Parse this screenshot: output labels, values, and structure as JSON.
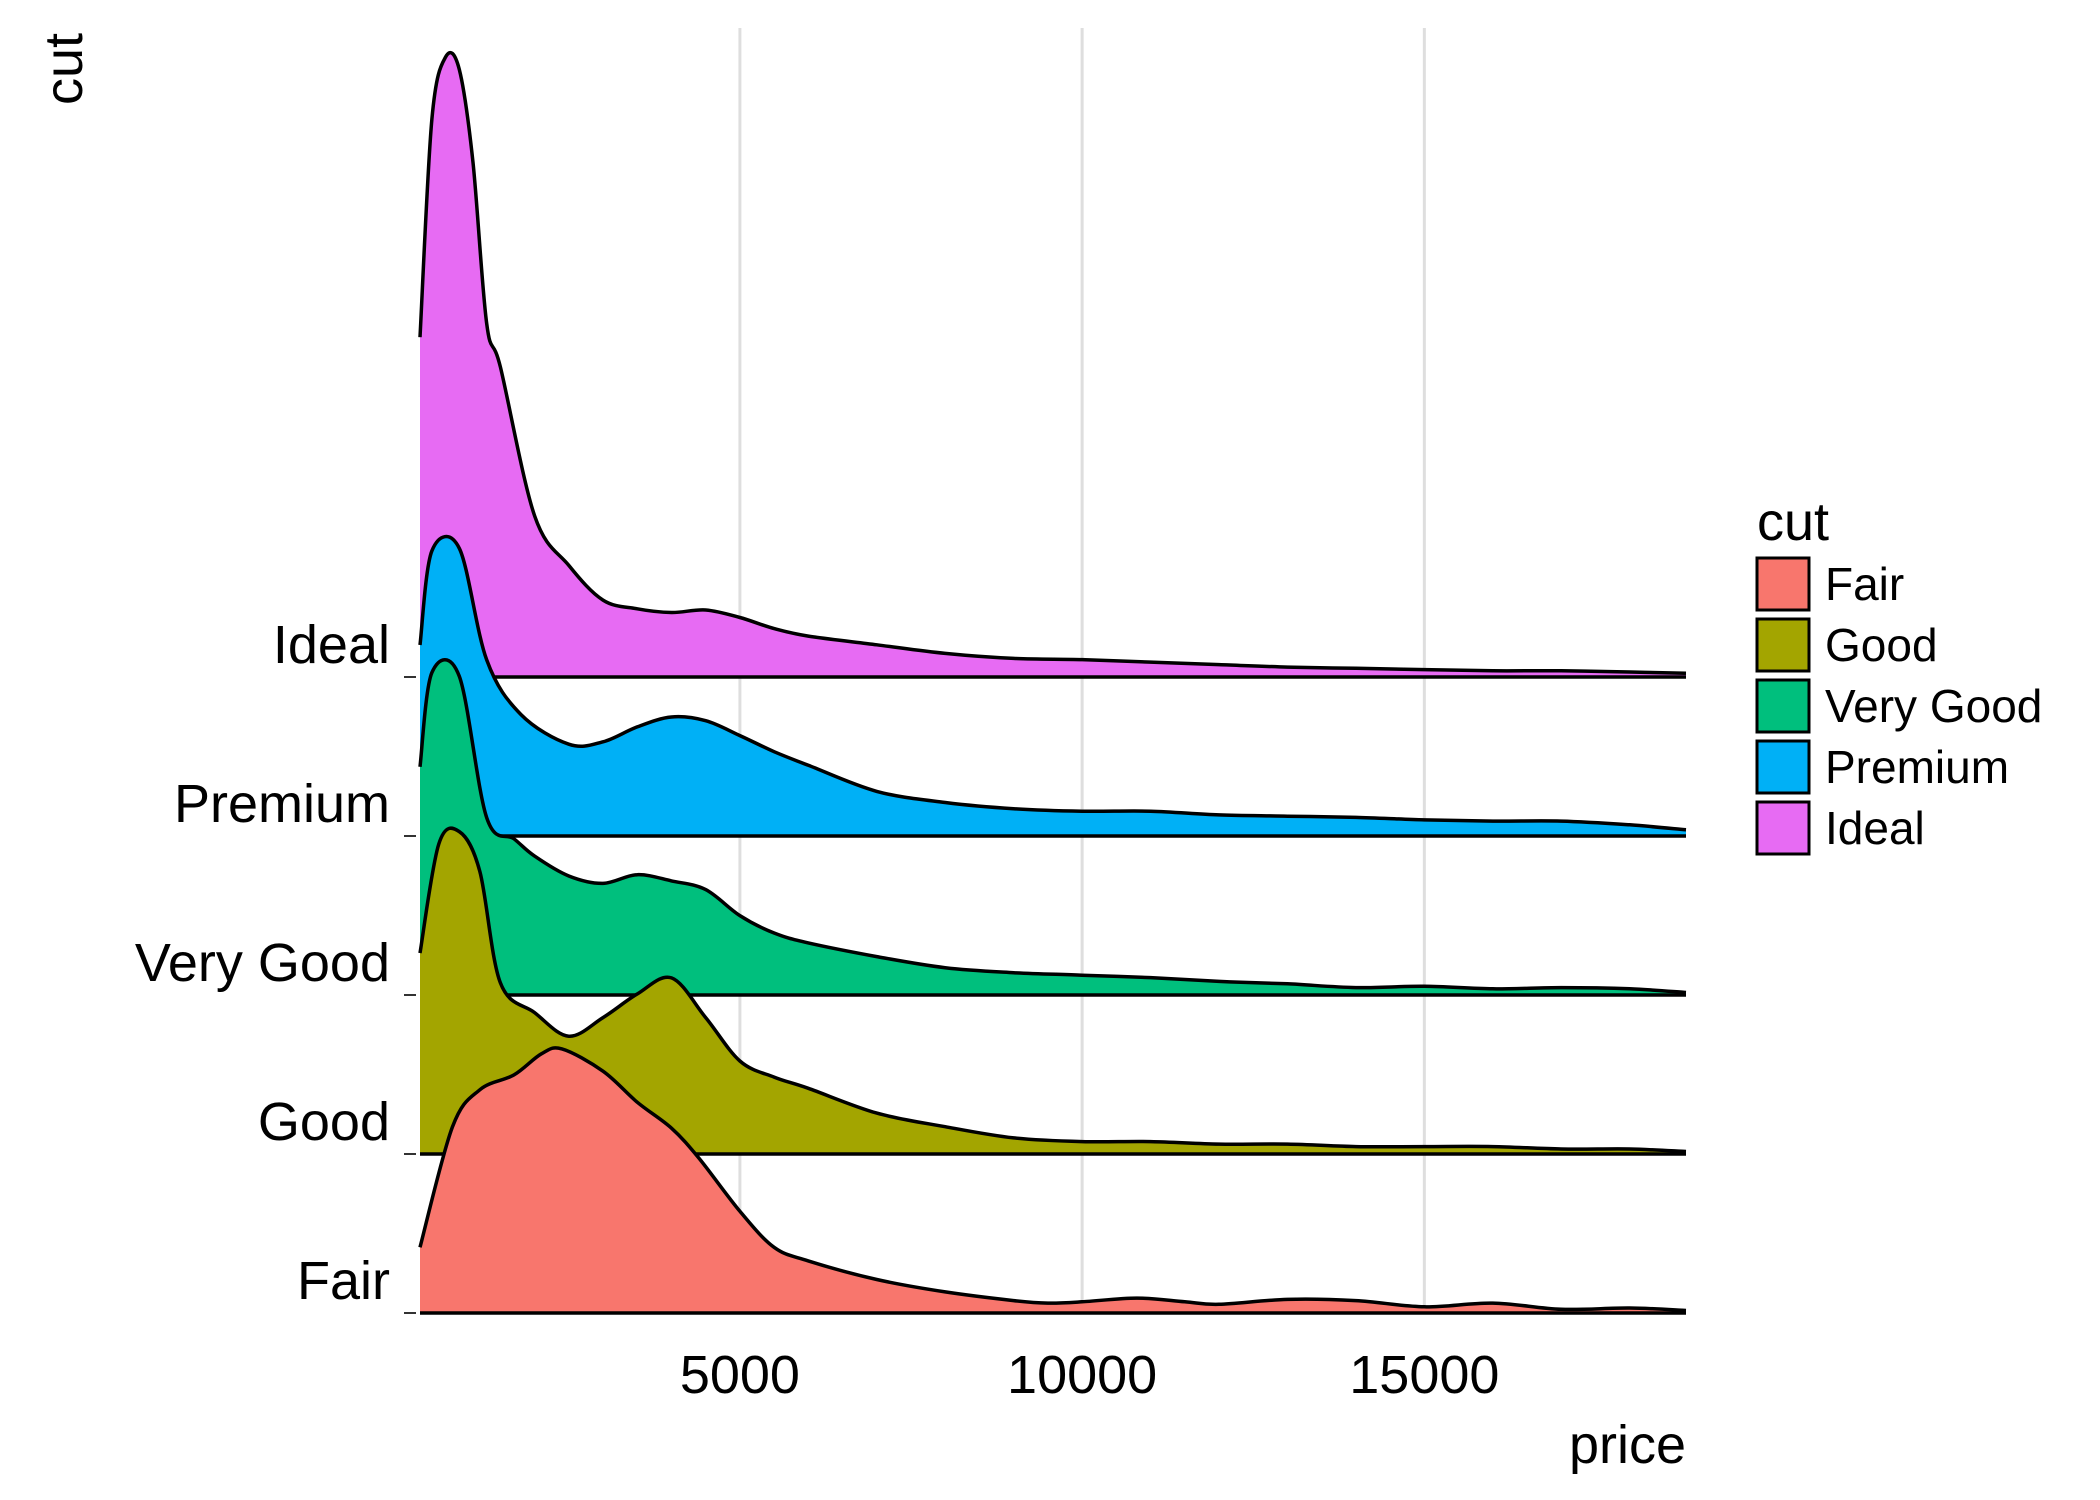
{
  "chart_data": {
    "type": "area",
    "subtype": "ridgeline-density",
    "title": "",
    "xlabel": "price",
    "ylabel": "cut",
    "xlim": [
      326,
      18823
    ],
    "x_ticks": [
      5000,
      10000,
      15000
    ],
    "grid": "vertical-major",
    "legend": {
      "title": "cut",
      "position": "right",
      "entries": [
        "Fair",
        "Good",
        "Very Good",
        "Premium",
        "Ideal"
      ]
    },
    "categories": [
      "Fair",
      "Good",
      "Very Good",
      "Premium",
      "Ideal"
    ],
    "series": [
      {
        "name": "Fair",
        "color": "#F8766D",
        "x": [
          326,
          800,
          1200,
          1700,
          2100,
          2400,
          3000,
          3500,
          4000,
          4400,
          5000,
          5500,
          6000,
          7000,
          8000,
          9000,
          9500,
          10000,
          10800,
          11500,
          12000,
          13000,
          14000,
          15000,
          16000,
          17000,
          18000,
          18823
        ],
        "density": [
          0.53,
          1.5,
          1.8,
          1.92,
          2.09,
          2.13,
          1.95,
          1.7,
          1.49,
          1.25,
          0.82,
          0.53,
          0.42,
          0.27,
          0.17,
          0.1,
          0.08,
          0.09,
          0.12,
          0.09,
          0.07,
          0.11,
          0.1,
          0.05,
          0.08,
          0.03,
          0.04,
          0.02
        ]
      },
      {
        "name": "Good",
        "color": "#A3A500",
        "x": [
          326,
          600,
          900,
          1200,
          1500,
          2000,
          2500,
          3000,
          3500,
          4000,
          4500,
          5000,
          5500,
          6000,
          7000,
          8000,
          9000,
          10000,
          11000,
          12000,
          13000,
          14000,
          15000,
          16000,
          17000,
          18000,
          18823
        ],
        "density": [
          1.62,
          2.5,
          2.6,
          2.28,
          1.38,
          1.14,
          0.95,
          1.1,
          1.29,
          1.42,
          1.1,
          0.75,
          0.62,
          0.53,
          0.33,
          0.22,
          0.13,
          0.1,
          0.1,
          0.08,
          0.08,
          0.06,
          0.06,
          0.06,
          0.04,
          0.04,
          0.02
        ]
      },
      {
        "name": "Very Good",
        "color": "#00BF7D",
        "x": [
          326,
          500,
          900,
          1300,
          1700,
          2000,
          2500,
          3000,
          3500,
          4000,
          4500,
          5000,
          5500,
          6000,
          7000,
          8000,
          9000,
          10000,
          11000,
          12000,
          13000,
          14000,
          15000,
          16000,
          17000,
          18000,
          18823
        ],
        "density": [
          1.84,
          2.6,
          2.57,
          1.43,
          1.26,
          1.12,
          0.96,
          0.9,
          0.97,
          0.92,
          0.85,
          0.64,
          0.5,
          0.42,
          0.31,
          0.22,
          0.18,
          0.16,
          0.14,
          0.11,
          0.09,
          0.06,
          0.07,
          0.05,
          0.06,
          0.05,
          0.02
        ]
      },
      {
        "name": "Premium",
        "color": "#00B0F6",
        "x": [
          326,
          500,
          900,
          1300,
          1800,
          2500,
          3000,
          3500,
          4000,
          4500,
          5000,
          5500,
          6000,
          7000,
          8000,
          9000,
          10000,
          11000,
          12000,
          13000,
          14000,
          15000,
          16000,
          17000,
          18000,
          18823
        ],
        "density": [
          1.54,
          2.3,
          2.32,
          1.42,
          0.98,
          0.74,
          0.76,
          0.88,
          0.96,
          0.93,
          0.81,
          0.68,
          0.57,
          0.36,
          0.27,
          0.22,
          0.2,
          0.2,
          0.17,
          0.16,
          0.15,
          0.13,
          0.12,
          0.12,
          0.09,
          0.05
        ]
      },
      {
        "name": "Ideal",
        "color": "#E76BF3",
        "x": [
          326,
          500,
          700,
          900,
          1100,
          1300,
          1500,
          2000,
          2500,
          3000,
          3500,
          4000,
          4500,
          5000,
          5500,
          6000,
          7000,
          8000,
          9000,
          10000,
          11000,
          12000,
          13000,
          14000,
          15000,
          16000,
          17000,
          18000,
          18823
        ],
        "density": [
          2.74,
          4.5,
          5.0,
          4.9,
          4.15,
          2.85,
          2.5,
          1.3,
          0.9,
          0.62,
          0.55,
          0.52,
          0.54,
          0.48,
          0.39,
          0.33,
          0.26,
          0.19,
          0.15,
          0.14,
          0.12,
          0.1,
          0.08,
          0.07,
          0.06,
          0.05,
          0.05,
          0.04,
          0.03
        ]
      }
    ]
  }
}
